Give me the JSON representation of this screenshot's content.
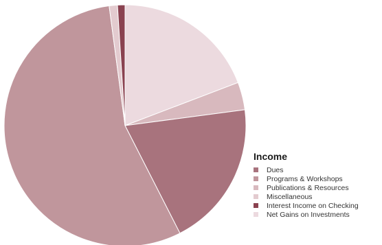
{
  "chart_data": {
    "type": "pie",
    "title": "",
    "legend_title": "Income",
    "legend_position": "bottom-right",
    "start_angle_deg": 0,
    "direction": "clockwise",
    "slices": [
      {
        "label": "Net Gains on Investments",
        "value": 19.2,
        "color": "#ecdadf"
      },
      {
        "label": "Publications & Resources",
        "value": 3.7,
        "color": "#d8b9be"
      },
      {
        "label": "Dues",
        "value": 19.6,
        "color": "#a8737d"
      },
      {
        "label": "Programs & Workshops",
        "value": 55.4,
        "color": "#c0969c"
      },
      {
        "label": "Miscellaneous",
        "value": 1.1,
        "color": "#e3cbcf"
      },
      {
        "label": "Interest Income on Checking",
        "value": 1.0,
        "color": "#8a4250"
      }
    ],
    "legend_order": [
      "Dues",
      "Programs & Workshops",
      "Publications & Resources",
      "Miscellaneous",
      "Interest Income on Checking",
      "Net Gains on Investments"
    ]
  }
}
